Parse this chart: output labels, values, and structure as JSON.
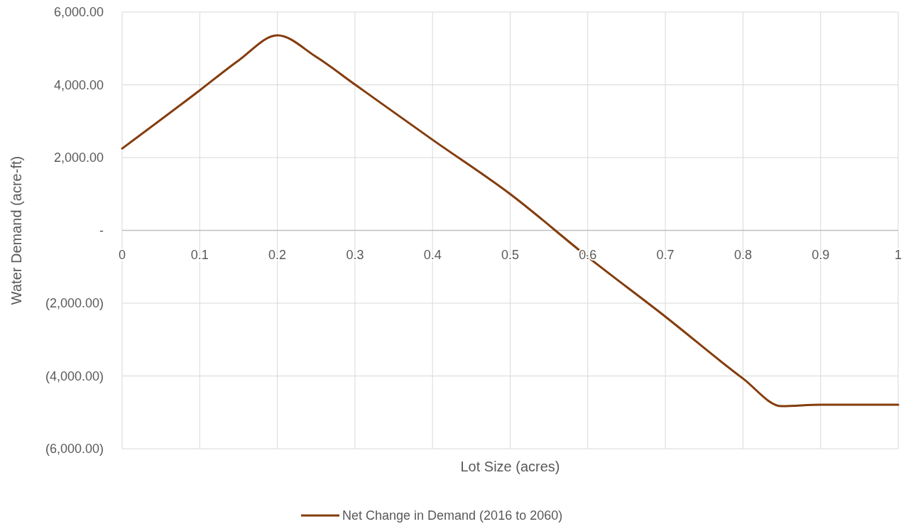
{
  "chart_data": {
    "type": "line",
    "xlabel": "Lot Size (acres)",
    "ylabel": "Water Demand (acre-ft)",
    "x": [
      0,
      0.1,
      0.15,
      0.2,
      0.25,
      0.3,
      0.4,
      0.5,
      0.6,
      0.7,
      0.8,
      0.85,
      0.9,
      1
    ],
    "series": [
      {
        "name": "Net Change in Demand (2016 to 2060)",
        "color": "#843c0c",
        "values": [
          2250,
          3850,
          4670,
          5360,
          4770,
          4010,
          2490,
          1000,
          -730,
          -2370,
          -4070,
          -4830,
          -4790,
          -4790
        ]
      }
    ],
    "xlim": [
      0,
      1
    ],
    "xticks": [
      0,
      0.1,
      0.2,
      0.3,
      0.4,
      0.5,
      0.6,
      0.7,
      0.8,
      0.9,
      1
    ],
    "ylim": [
      -6000,
      6000
    ],
    "yticks": [
      {
        "value": -6000,
        "label": "(6,000.00)"
      },
      {
        "value": -4000,
        "label": "(4,000.00)"
      },
      {
        "value": -2000,
        "label": "(2,000.00)"
      },
      {
        "value": 0,
        "label": "-"
      },
      {
        "value": 2000,
        "label": "2,000.00"
      },
      {
        "value": 4000,
        "label": "4,000.00"
      },
      {
        "value": 6000,
        "label": "6,000.00"
      }
    ],
    "grid": true,
    "legend": "bottom",
    "marker": "none",
    "line_style": "solid"
  }
}
